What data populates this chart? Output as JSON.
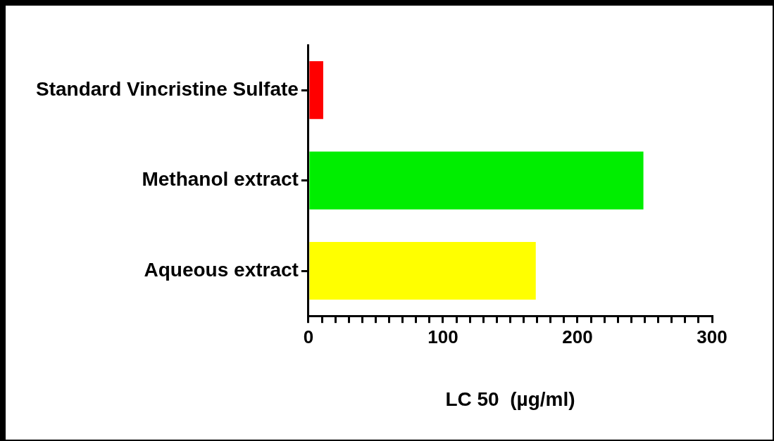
{
  "chart_data": {
    "type": "bar",
    "orientation": "horizontal",
    "xlabel": "LC 50  (µg/ml)",
    "categories": [
      "Standard Vincristine Sulfate",
      "Methanol extract",
      "Aqueous extract"
    ],
    "values": [
      11,
      249,
      169
    ],
    "colors": [
      "#ff0000",
      "#00ee00",
      "#ffff00"
    ],
    "xlim": [
      0,
      300
    ],
    "xticks": [
      0,
      {
        "value": 10,
        "label": null
      },
      {
        "value": 20,
        "label": null
      },
      {
        "value": 30,
        "label": null
      },
      {
        "value": 40,
        "label": null
      },
      {
        "value": 50,
        "label": null
      },
      {
        "value": 60,
        "label": null
      },
      {
        "value": 70,
        "label": null
      },
      {
        "value": 80,
        "label": null
      },
      {
        "value": 90,
        "label": null
      },
      100,
      {
        "value": 110,
        "label": null
      },
      {
        "value": 120,
        "label": null
      },
      {
        "value": 130,
        "label": null
      },
      {
        "value": 140,
        "label": null
      },
      {
        "value": 150,
        "label": null
      },
      {
        "value": 160,
        "label": null
      },
      {
        "value": 170,
        "label": null
      },
      {
        "value": 180,
        "label": null
      },
      {
        "value": 190,
        "label": null
      },
      200,
      {
        "value": 210,
        "label": null
      },
      {
        "value": 220,
        "label": null
      },
      {
        "value": 230,
        "label": null
      },
      {
        "value": 240,
        "label": null
      },
      {
        "value": 250,
        "label": null
      },
      {
        "value": 260,
        "label": null
      },
      {
        "value": 270,
        "label": null
      },
      {
        "value": 280,
        "label": null
      },
      {
        "value": 290,
        "label": null
      },
      300
    ],
    "grid": false,
    "legend": false
  }
}
